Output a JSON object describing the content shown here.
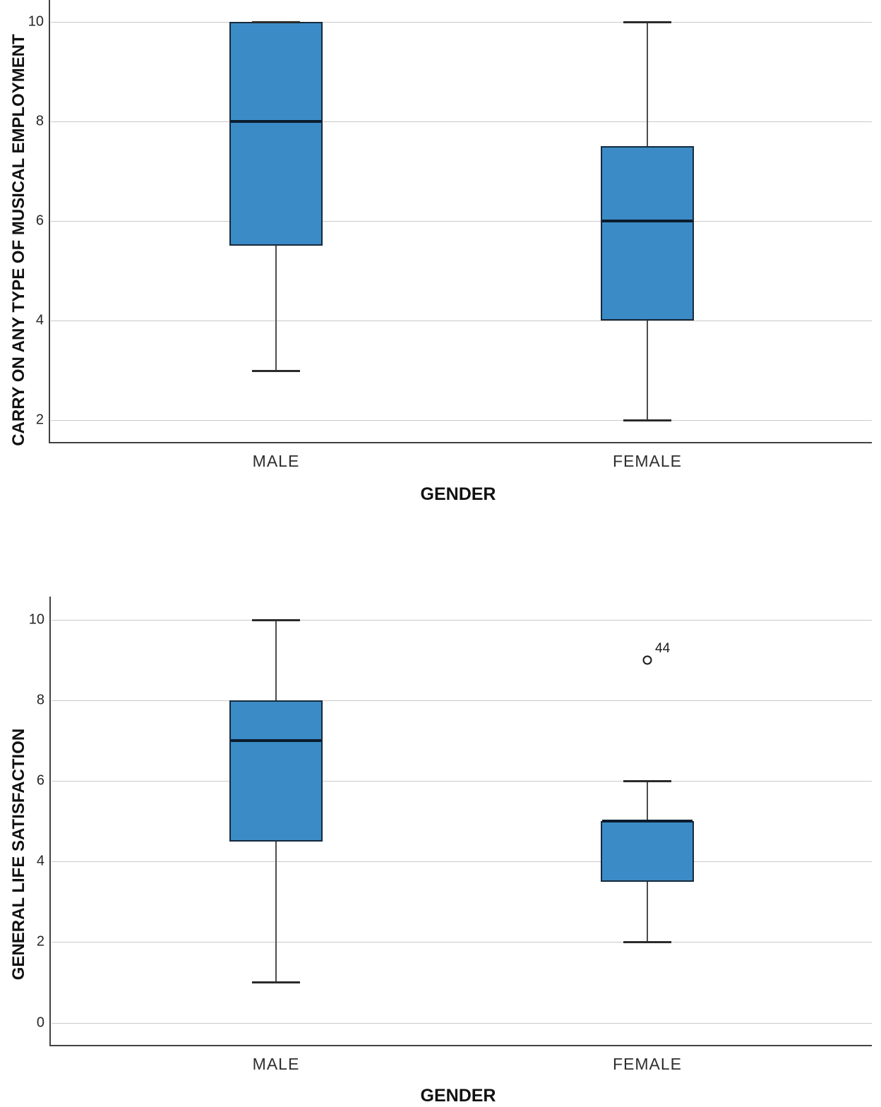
{
  "figure": {
    "background": "#ffffff",
    "box_fill": "#3b8cc6",
    "box_border": "#16293c",
    "median_color": "#0c1c2d"
  },
  "chart_data": [
    {
      "type": "box",
      "title": "",
      "xlabel": "GENDER",
      "ylabel": "CARRY ON ANY TYPE OF MUSICAL EMPLOYMENT",
      "categories": [
        "MALE",
        "FEMALE"
      ],
      "yticks": [
        2,
        4,
        6,
        8,
        10
      ],
      "ylim": [
        1.5,
        10.5
      ],
      "grid": "horizontal",
      "legend": "none",
      "series": [
        {
          "category": "MALE",
          "whisker_low": 3,
          "q1": 5.5,
          "median": 8,
          "q3": 10,
          "whisker_high": 10,
          "outliers": []
        },
        {
          "category": "FEMALE",
          "whisker_low": 2,
          "q1": 4,
          "median": 6,
          "q3": 7.5,
          "whisker_high": 10,
          "outliers": []
        }
      ]
    },
    {
      "type": "box",
      "title": "",
      "xlabel": "GENDER",
      "ylabel": "GENERAL LIFE SATISFACTION",
      "categories": [
        "MALE",
        "FEMALE"
      ],
      "yticks": [
        0,
        2,
        4,
        6,
        8,
        10
      ],
      "ylim": [
        -0.6,
        10.6
      ],
      "grid": "horizontal",
      "legend": "none",
      "series": [
        {
          "category": "MALE",
          "whisker_low": 1,
          "q1": 4.5,
          "median": 7,
          "q3": 8,
          "whisker_high": 10,
          "outliers": []
        },
        {
          "category": "FEMALE",
          "whisker_low": 2,
          "q1": 3.5,
          "median": 5,
          "q3": 5,
          "whisker_high": 6,
          "outliers": [
            {
              "value": 9,
              "label": "44"
            }
          ]
        }
      ]
    }
  ]
}
